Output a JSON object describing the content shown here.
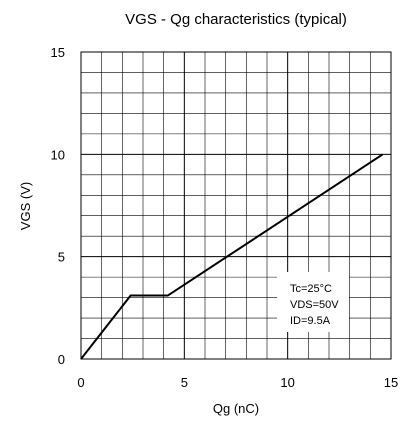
{
  "chart_data": {
    "type": "line",
    "title": "VGS - Qg characteristics (typical)",
    "xlabel": "Qg (nC)",
    "ylabel": "VGS (V)",
    "xlim": [
      0,
      15
    ],
    "ylim": [
      0,
      15
    ],
    "xticks": [
      0,
      5,
      10,
      15
    ],
    "yticks": [
      0,
      5,
      10,
      15
    ],
    "x_tick_labels": [
      "0",
      "5",
      "10",
      "15"
    ],
    "y_tick_labels": [
      "0",
      "5",
      "10",
      "15"
    ],
    "grid": {
      "major_step": 5,
      "minor_step": 1
    },
    "legend": "none",
    "series": [
      {
        "x": [
          0,
          2.4,
          4.2,
          14.6
        ],
        "y": [
          0,
          3.1,
          3.1,
          10
        ]
      }
    ],
    "annotations": [
      "Tc=25°C",
      "VDS=50V",
      "ID=9.5A"
    ],
    "colors": {
      "line": "#000000",
      "grid": "#000000",
      "background": "#ffffff"
    }
  }
}
